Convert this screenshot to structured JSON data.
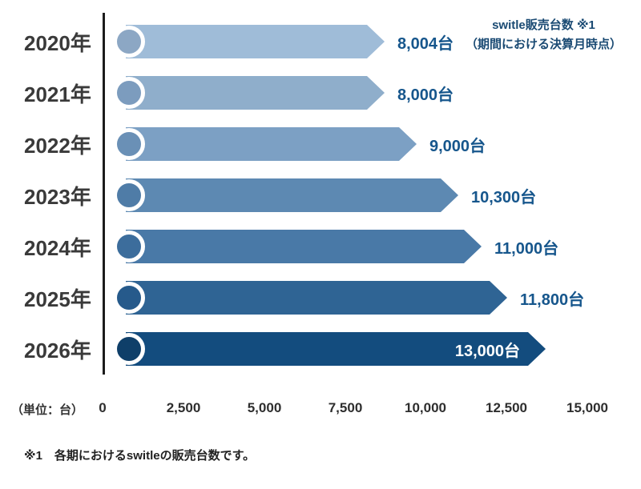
{
  "chart_data": {
    "type": "bar",
    "orientation": "horizontal",
    "title": "switle販売台数 ※1",
    "subtitle": "（期間における決算月時点）",
    "unit_label": "（単位：台）",
    "footnote": "※1　各期におけるswitleの販売台数です。",
    "categories": [
      "2020年",
      "2021年",
      "2022年",
      "2023年",
      "2024年",
      "2025年",
      "2026年"
    ],
    "values": [
      8004,
      8000,
      9000,
      10300,
      11000,
      11800,
      13000
    ],
    "value_labels": [
      "8,004台",
      "8,000台",
      "9,000台",
      "10,300台",
      "11,000台",
      "11,800台",
      "13,000台"
    ],
    "value_label_inside": [
      false,
      false,
      false,
      false,
      false,
      false,
      true
    ],
    "bar_colors": [
      "#9FBCD8",
      "#8FAECB",
      "#7CA0C4",
      "#5D89B2",
      "#4979A7",
      "#2F6494",
      "#134C7E"
    ],
    "circle_colors": [
      "#8CA7C4",
      "#7C9CBE",
      "#6A90B6",
      "#4F7CA7",
      "#3C6D9C",
      "#265A8B",
      "#0F3F69"
    ],
    "value_label_color": "#16568C",
    "xlim": [
      0,
      15000
    ],
    "xticks": [
      0,
      2500,
      5000,
      7500,
      10000,
      12500,
      15000
    ],
    "xtick_labels": [
      "0",
      "2,500",
      "5,000",
      "7,500",
      "10,000",
      "12,500",
      "15,000"
    ],
    "legend_position": "none",
    "grid": false
  }
}
